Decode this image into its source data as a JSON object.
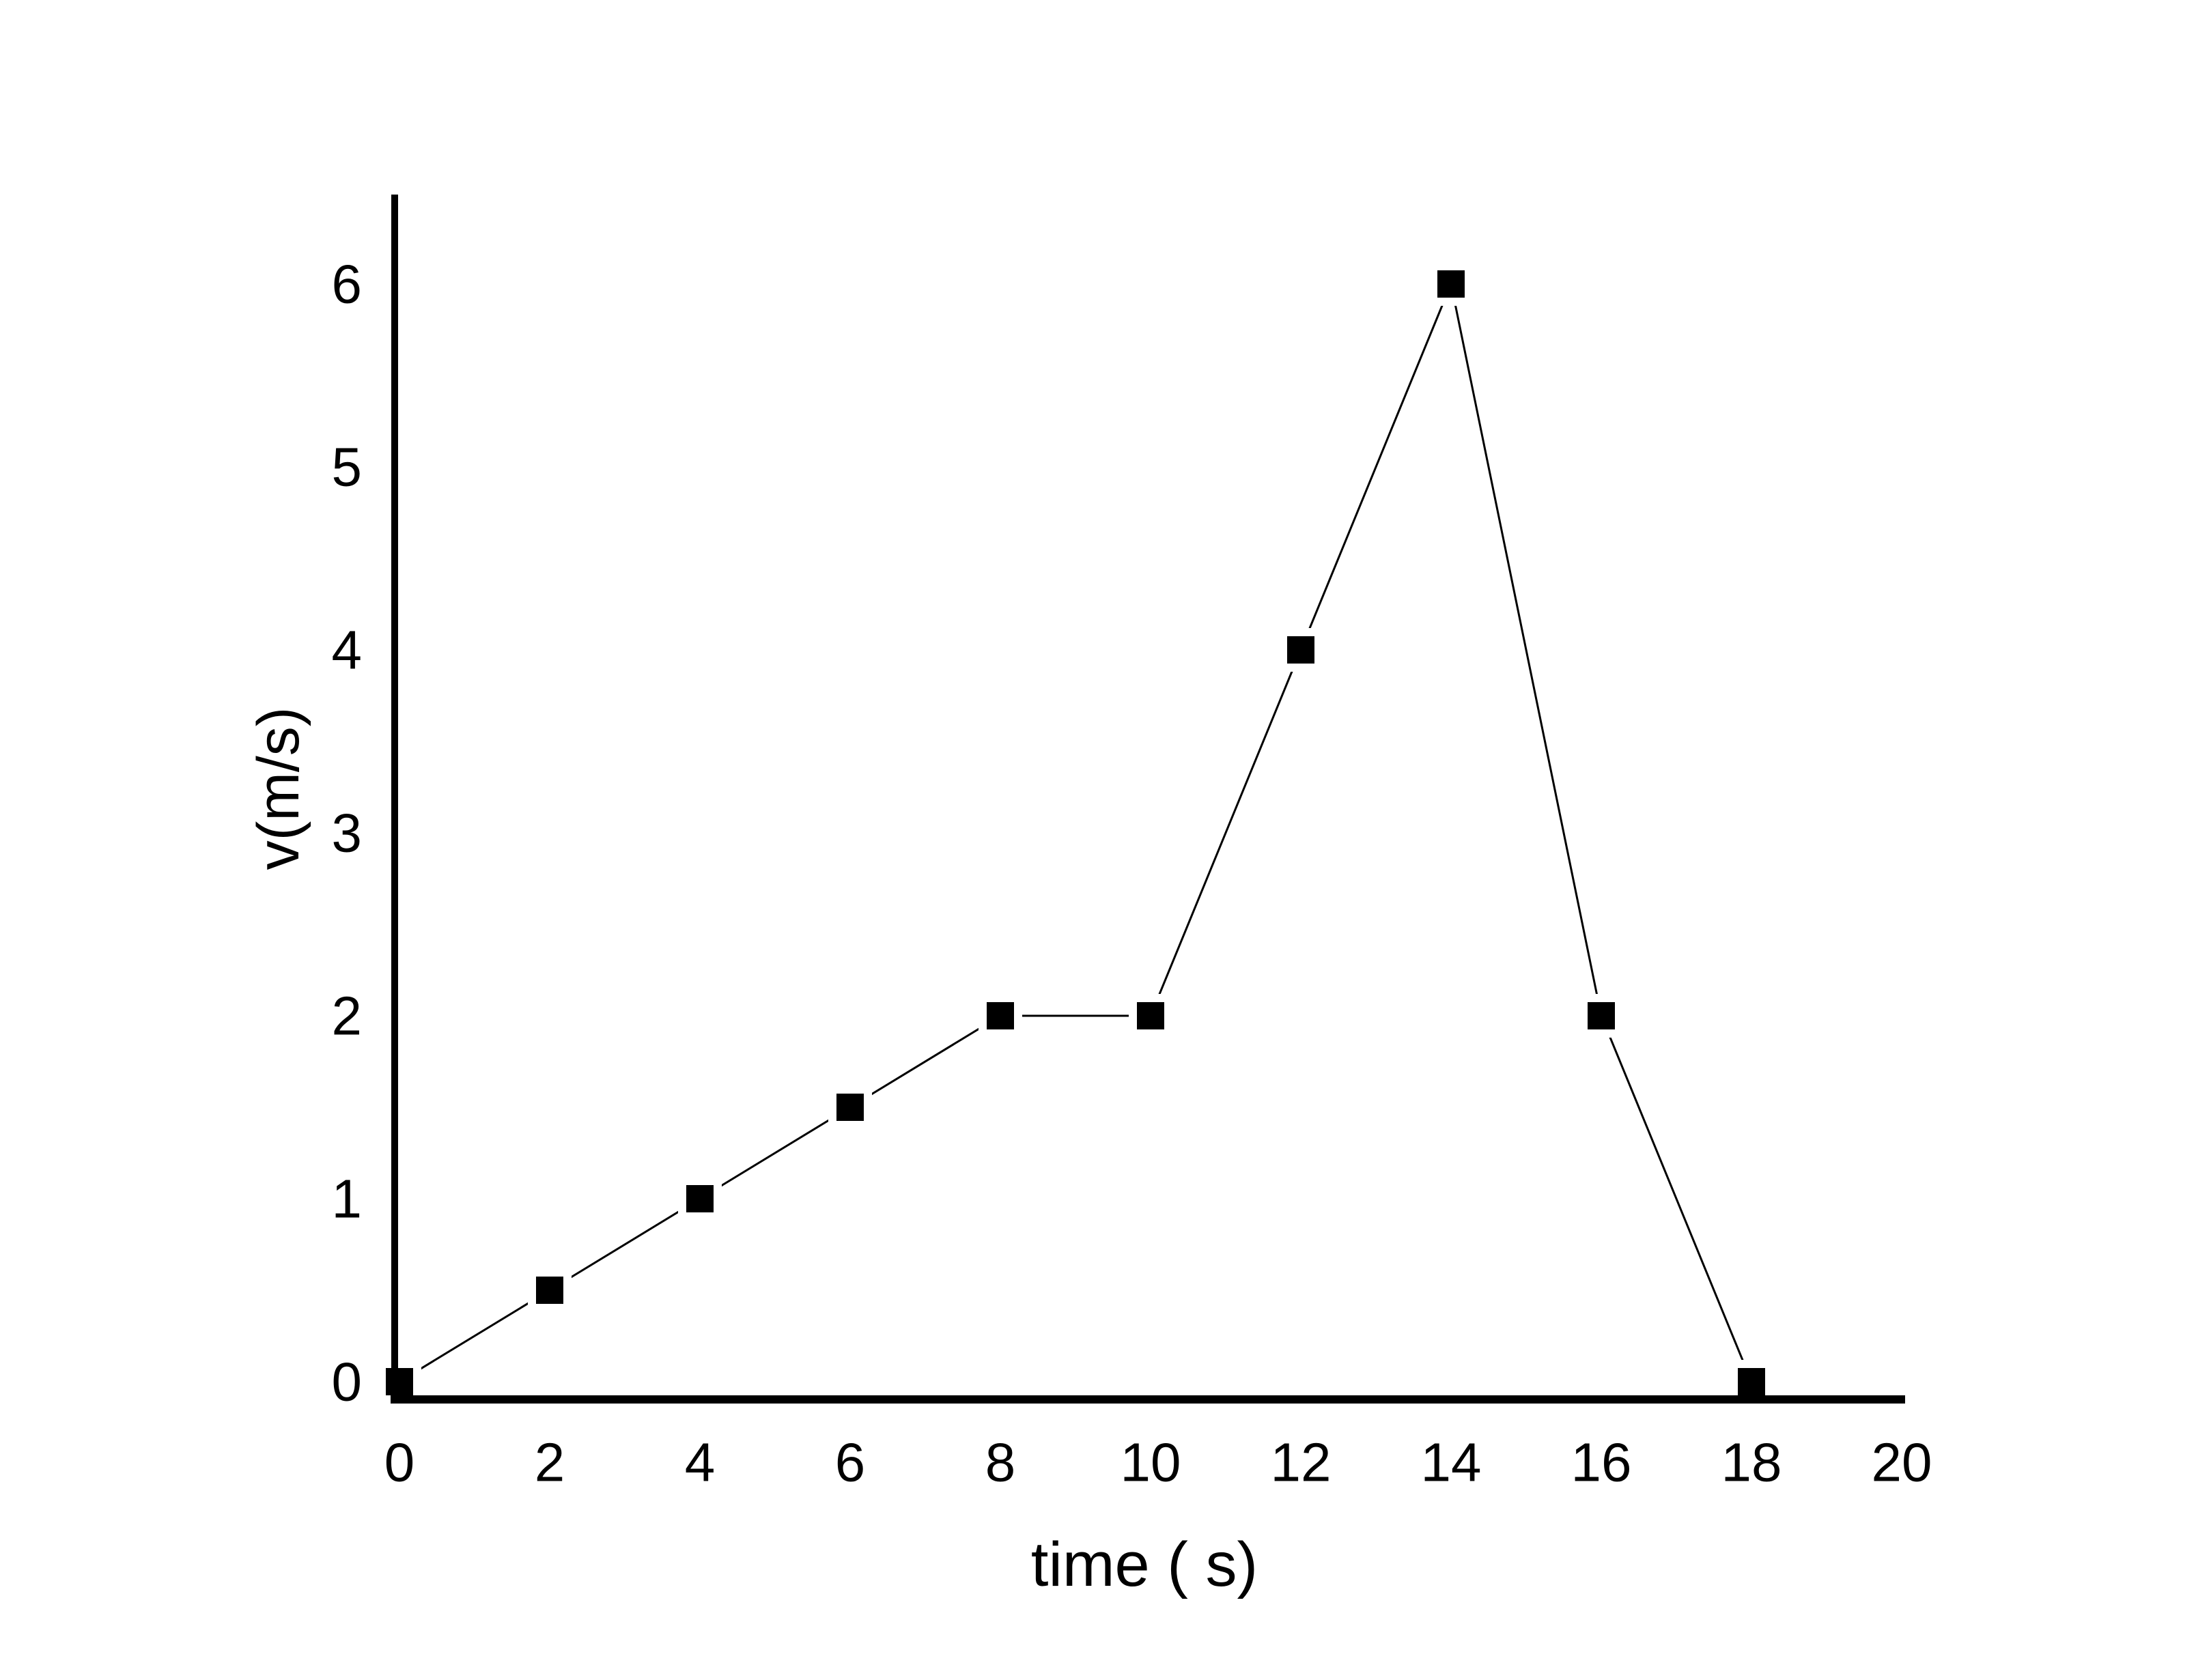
{
  "chart_data": {
    "type": "line",
    "x": [
      0,
      2,
      4,
      6,
      8,
      10,
      12,
      14,
      16,
      18
    ],
    "y": [
      0,
      0.5,
      1,
      1.5,
      2,
      2,
      4,
      6,
      2,
      0
    ],
    "points": [
      {
        "t": 0,
        "v": 0
      },
      {
        "t": 2,
        "v": 0.5
      },
      {
        "t": 4,
        "v": 1
      },
      {
        "t": 6,
        "v": 1.5
      },
      {
        "t": 8,
        "v": 2
      },
      {
        "t": 10,
        "v": 2
      },
      {
        "t": 12,
        "v": 4
      },
      {
        "t": 14,
        "v": 6
      },
      {
        "t": 16,
        "v": 2
      },
      {
        "t": 18,
        "v": 0
      }
    ],
    "title": "",
    "xlabel": "time ( s)",
    "ylabel": "v(m/s)",
    "x_ticks": [
      0,
      2,
      4,
      6,
      8,
      10,
      12,
      14,
      16,
      18,
      20
    ],
    "y_ticks": [
      0,
      1,
      2,
      3,
      4,
      5,
      6
    ],
    "xlim": [
      0,
      20
    ],
    "ylim": [
      0,
      6
    ],
    "grid": false,
    "legend_position": "none",
    "marker_shape": "filled-square",
    "line_color": "#000000",
    "marker_color": "#000000",
    "axis_color": "#000000",
    "background_color": "#ffffff"
  }
}
